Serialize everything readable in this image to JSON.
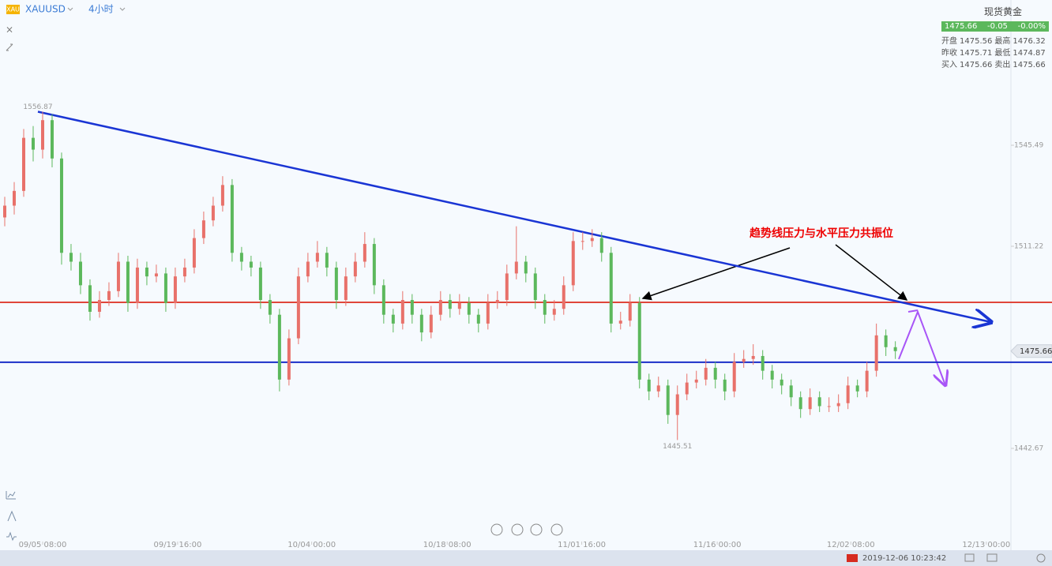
{
  "header": {
    "symbol_icon": "XAU",
    "symbol": "XAUUSD",
    "interval": "4小时"
  },
  "quote": {
    "name": "现货黄金",
    "last": "1475.66",
    "change": "-0.05",
    "change_pct": "-0.00%",
    "rows": [
      [
        "开盘",
        "1475.56",
        "最高",
        "1476.32"
      ],
      [
        "昨收",
        "1475.71",
        "最低",
        "1474.87"
      ],
      [
        "买入",
        "1475.66",
        "卖出",
        "1475.66"
      ]
    ]
  },
  "chart_data": {
    "type": "candlestick",
    "ohlc": [
      [
        1521,
        1528,
        1518,
        1525
      ],
      [
        1525,
        1533,
        1522,
        1530
      ],
      [
        1530,
        1551,
        1528,
        1548
      ],
      [
        1548,
        1552,
        1540,
        1544
      ],
      [
        1544,
        1556.87,
        1541,
        1554
      ],
      [
        1554,
        1556,
        1538,
        1541
      ],
      [
        1541,
        1543,
        1505,
        1509
      ],
      [
        1509,
        1512,
        1503,
        1506
      ],
      [
        1506,
        1509,
        1495,
        1498
      ],
      [
        1498,
        1500,
        1486,
        1489
      ],
      [
        1489,
        1496,
        1487,
        1493
      ],
      [
        1493,
        1499,
        1491,
        1496
      ],
      [
        1496,
        1509,
        1494,
        1506
      ],
      [
        1506,
        1508,
        1489,
        1492
      ],
      [
        1492,
        1507,
        1490,
        1504
      ],
      [
        1504,
        1506,
        1498,
        1501
      ],
      [
        1501,
        1505,
        1499,
        1502
      ],
      [
        1502,
        1504,
        1489,
        1492
      ],
      [
        1492,
        1504,
        1490,
        1501
      ],
      [
        1501,
        1507,
        1499,
        1504
      ],
      [
        1504,
        1517,
        1502,
        1514
      ],
      [
        1514,
        1523,
        1512,
        1520
      ],
      [
        1520,
        1528,
        1518,
        1525
      ],
      [
        1525,
        1535,
        1523,
        1532
      ],
      [
        1532,
        1534,
        1506,
        1509
      ],
      [
        1509,
        1511,
        1503,
        1506
      ],
      [
        1506,
        1508,
        1501,
        1504
      ],
      [
        1504,
        1506,
        1490,
        1493
      ],
      [
        1493,
        1495,
        1485,
        1488
      ],
      [
        1488,
        1490,
        1462,
        1466
      ],
      [
        1466,
        1483,
        1464,
        1480
      ],
      [
        1480,
        1504,
        1478,
        1501
      ],
      [
        1501,
        1509,
        1499,
        1506
      ],
      [
        1506,
        1513,
        1504,
        1509
      ],
      [
        1509,
        1511,
        1501,
        1504
      ],
      [
        1504,
        1506,
        1490,
        1493
      ],
      [
        1493,
        1504,
        1491,
        1501
      ],
      [
        1501,
        1509,
        1499,
        1506
      ],
      [
        1506,
        1516,
        1504,
        1512
      ],
      [
        1512,
        1514,
        1495,
        1498
      ],
      [
        1498,
        1500,
        1485,
        1488
      ],
      [
        1488,
        1490,
        1482,
        1485
      ],
      [
        1485,
        1496,
        1483,
        1493
      ],
      [
        1493,
        1495,
        1485,
        1488
      ],
      [
        1488,
        1490,
        1479,
        1482
      ],
      [
        1482,
        1491,
        1480,
        1488
      ],
      [
        1488,
        1496,
        1486,
        1493
      ],
      [
        1493,
        1495,
        1487,
        1490
      ],
      [
        1490,
        1495,
        1488,
        1492
      ],
      [
        1492,
        1494,
        1485,
        1488
      ],
      [
        1488,
        1490,
        1482,
        1485
      ],
      [
        1485,
        1495,
        1483,
        1492
      ],
      [
        1492,
        1496,
        1490,
        1493
      ],
      [
        1493,
        1505,
        1491,
        1502
      ],
      [
        1502,
        1518,
        1500,
        1506
      ],
      [
        1506,
        1508,
        1499,
        1502
      ],
      [
        1502,
        1504,
        1490,
        1493
      ],
      [
        1493,
        1495,
        1485,
        1488
      ],
      [
        1488,
        1493,
        1486,
        1490
      ],
      [
        1490,
        1501,
        1488,
        1498
      ],
      [
        1498,
        1516,
        1496,
        1513
      ],
      [
        1513,
        1516,
        1510,
        1513
      ],
      [
        1513,
        1517,
        1511,
        1514
      ],
      [
        1514,
        1516,
        1506,
        1509
      ],
      [
        1509,
        1511,
        1482,
        1485
      ],
      [
        1485,
        1489,
        1483,
        1486
      ],
      [
        1486,
        1495,
        1484,
        1492
      ],
      [
        1492,
        1494,
        1463,
        1466
      ],
      [
        1466,
        1468,
        1459,
        1462
      ],
      [
        1462,
        1467,
        1460,
        1464
      ],
      [
        1464,
        1466,
        1451,
        1454
      ],
      [
        1454,
        1464,
        1445.51,
        1461
      ],
      [
        1461,
        1468,
        1459,
        1465
      ],
      [
        1465,
        1469,
        1463,
        1466
      ],
      [
        1466,
        1473,
        1464,
        1470
      ],
      [
        1470,
        1472,
        1463,
        1466
      ],
      [
        1466,
        1468,
        1459,
        1462
      ],
      [
        1462,
        1475,
        1460,
        1472
      ],
      [
        1472,
        1476,
        1470,
        1473
      ],
      [
        1473,
        1478,
        1471,
        1474
      ],
      [
        1474,
        1476,
        1466,
        1469
      ],
      [
        1469,
        1471,
        1463,
        1466
      ],
      [
        1466,
        1468,
        1461,
        1464
      ],
      [
        1464,
        1466,
        1457,
        1460
      ],
      [
        1460,
        1462,
        1453,
        1456
      ],
      [
        1456,
        1463,
        1454,
        1460
      ],
      [
        1460,
        1462,
        1455,
        1457
      ],
      [
        1457,
        1460,
        1455,
        1457
      ],
      [
        1457,
        1461,
        1455,
        1458
      ],
      [
        1458,
        1467,
        1456,
        1464
      ],
      [
        1464,
        1466,
        1460,
        1462
      ],
      [
        1462,
        1472,
        1460,
        1469
      ],
      [
        1469,
        1485,
        1467,
        1481
      ],
      [
        1481,
        1483,
        1474,
        1477
      ],
      [
        1477,
        1479,
        1473,
        1475.66
      ]
    ],
    "up_color": "#e8716a",
    "down_color": "#5cb85c",
    "xlim": [
      -0.5,
      106.2
    ],
    "xticks": [
      {
        "value": 4,
        "label": "09/05 08:00"
      },
      {
        "value": 18.25,
        "label": "09/19 16:00"
      },
      {
        "value": 32.4,
        "label": "10/04 00:00"
      },
      {
        "value": 46.7,
        "label": "10/18 08:00"
      },
      {
        "value": 60.9,
        "label": "11/01 16:00"
      },
      {
        "value": 75.2,
        "label": "11/16 00:00"
      },
      {
        "value": 89.3,
        "label": "12/02 08:00"
      },
      {
        "value": 103.6,
        "label": "12/13 00:00"
      }
    ],
    "ylim": [
      1410,
      1589.4
    ],
    "yticks": [
      1442.67,
      1511.22,
      1545.49
    ],
    "high_label": {
      "index": 3.5,
      "value": 1556.87
    },
    "low_label": {
      "index": 71,
      "value": 1445.51
    },
    "last_price": 1475.66,
    "trendline": {
      "from": [
        3.5,
        1556.87
      ],
      "to": [
        104.1,
        1485.5
      ],
      "color": "#1a35d4"
    },
    "levels": [
      {
        "value": 1492.2,
        "color": "#e0463a"
      },
      {
        "value": 1471.9,
        "color": "#1a2fc8"
      }
    ],
    "annotation": "趋势线压力与水平压力共振位"
  },
  "status": {
    "time": "2019-12-06 10:23:42"
  }
}
